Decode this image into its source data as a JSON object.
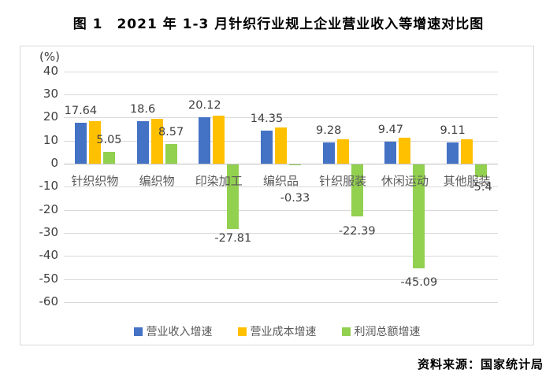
{
  "title": "图 1　2021 年 1-3 月针织行业规上企业营业收入等增速对比图",
  "source_note": "资料来源：国家统计局",
  "chart_data": {
    "type": "bar",
    "title": "图 1　2021 年 1-3 月针织行业规上企业营业收入等增速对比图",
    "unit_label": "(%)",
    "categories": [
      "针织织物",
      "编织物",
      "印染加工",
      "编织品",
      "针织服装",
      "休闲运动",
      "其他服装"
    ],
    "series": [
      {
        "key": "revenue-growth",
        "name": "营业收入增速",
        "color": "#4472C4",
        "values": [
          17.64,
          18.6,
          20.12,
          14.35,
          9.28,
          9.47,
          9.11
        ],
        "labels": [
          "17.64",
          "18.6",
          "20.12",
          "14.35",
          "9.28",
          "9.47",
          "9.11"
        ]
      },
      {
        "key": "cost-growth",
        "name": "营业成本增速",
        "color": "#FFC000",
        "values": [
          18.5,
          19.6,
          20.7,
          15.8,
          10.6,
          11.2,
          10.7
        ],
        "labels": null
      },
      {
        "key": "profit-growth",
        "name": "利润总额增速",
        "color": "#92D050",
        "values": [
          5.05,
          8.57,
          -27.81,
          -0.33,
          -22.39,
          -45.09,
          -5.4
        ],
        "labels": [
          "5.05",
          "8.57",
          "-27.81",
          "-0.33",
          "-22.39",
          "-45.09",
          "-5.4"
        ],
        "neg_label_dy": [
          0,
          0,
          5,
          35,
          12,
          11,
          6
        ]
      }
    ],
    "ylim": [
      -60,
      40
    ],
    "yticks": [
      40,
      30,
      20,
      10,
      0,
      -10,
      -20,
      -30,
      -40,
      -50,
      -60
    ],
    "ytick_labels": [
      "40",
      "30",
      "20",
      "10",
      "0",
      "-10",
      "-20",
      "-30",
      "-40",
      "-50",
      "-60"
    ],
    "grid": true,
    "legend_position": "bottom",
    "gridline_color": "#D9D9D9",
    "zero_line_color": "#BFBFBF"
  }
}
